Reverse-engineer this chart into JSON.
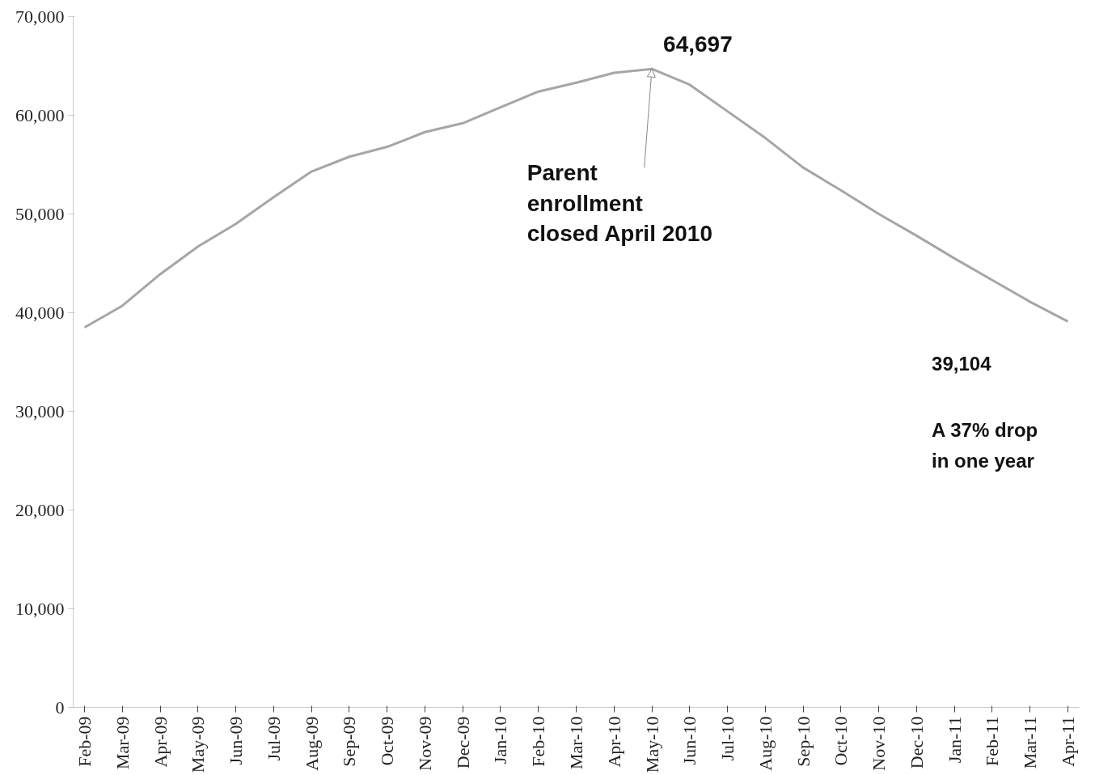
{
  "chart_data": {
    "type": "line",
    "categories": [
      "Feb-09",
      "Mar-09",
      "Apr-09",
      "May-09",
      "Jun-09",
      "Jul-09",
      "Aug-09",
      "Sep-09",
      "Oct-09",
      "Nov-09",
      "Dec-09",
      "Jan-10",
      "Feb-10",
      "Mar-10",
      "Apr-10",
      "May-10",
      "Jun-10",
      "Jul-10",
      "Aug-10",
      "Sep-10",
      "Oct-10",
      "Nov-10",
      "Dec-10",
      "Jan-11",
      "Feb-11",
      "Mar-11",
      "Apr-11"
    ],
    "series": [
      {
        "color": "#a6a6a6",
        "values": [
          38500,
          40700,
          43900,
          46700,
          49000,
          51700,
          54300,
          55800,
          56800,
          58300,
          59200,
          60800,
          62400,
          63300,
          64300,
          64697,
          63100,
          60400,
          57700,
          54700,
          52400,
          50000,
          47800,
          45500,
          43300,
          41100,
          39104
        ]
      }
    ],
    "ylim": [
      0,
      70000
    ],
    "yticks": [
      0,
      {
        "value": 10000,
        "label": "10,000"
      },
      {
        "value": 20000,
        "label": "20,000"
      },
      {
        "value": 30000,
        "label": "30,000"
      },
      {
        "value": 40000,
        "label": "40,000"
      },
      {
        "value": 50000,
        "label": "50,000"
      },
      {
        "value": 60000,
        "label": "60,000"
      },
      {
        "value": 70000,
        "label": "70,000"
      }
    ],
    "annotations": [
      {
        "text": "64,697",
        "x": "May-10",
        "y": 64697
      },
      {
        "text": "Parent enrollment closed April 2010",
        "x": "May-10",
        "y": 64697
      },
      "39,104",
      "A 37% drop in one year"
    ],
    "grid": false,
    "marker": "none",
    "line_style": "solid"
  }
}
